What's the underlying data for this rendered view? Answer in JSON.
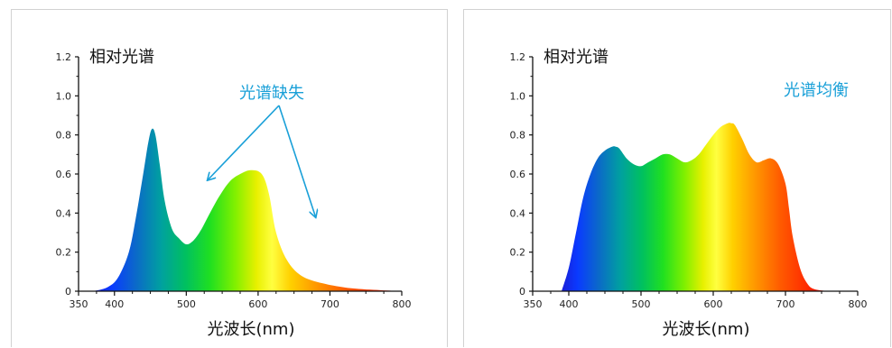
{
  "chart_data": [
    {
      "type": "area",
      "title": "相对光谱",
      "xlabel": "光波长(nm)",
      "ylabel": "",
      "xlim": [
        350,
        800
      ],
      "ylim": [
        0,
        1.2
      ],
      "x_ticks": [
        350,
        400,
        500,
        600,
        700,
        800
      ],
      "y_ticks": [
        0,
        0.2,
        0.4,
        0.6,
        0.8,
        1.0,
        1.2
      ],
      "x_tick_labels": [
        "350",
        "400",
        "500",
        "600",
        "700",
        "800"
      ],
      "y_tick_labels": [
        "0",
        "0.2",
        "0.4",
        "0.6",
        "0.8",
        "1.0",
        "1.2"
      ],
      "annotation": {
        "text": "光谱缺失",
        "color": "#1aa0d8",
        "arrow_targets": [
          [
            530,
            0.57
          ],
          [
            680,
            0.38
          ]
        ]
      },
      "series": [
        {
          "x": [
            370,
            390,
            405,
            420,
            430,
            440,
            447,
            452,
            457,
            463,
            470,
            480,
            490,
            500,
            510,
            520,
            530,
            545,
            560,
            575,
            590,
            605,
            615,
            625,
            640,
            660,
            690,
            730,
            770,
            800
          ],
          "y": [
            0.0,
            0.02,
            0.07,
            0.2,
            0.38,
            0.6,
            0.76,
            0.83,
            0.8,
            0.65,
            0.46,
            0.32,
            0.27,
            0.24,
            0.26,
            0.31,
            0.38,
            0.48,
            0.56,
            0.6,
            0.62,
            0.6,
            0.5,
            0.3,
            0.16,
            0.08,
            0.04,
            0.015,
            0.005,
            0.0
          ]
        }
      ]
    },
    {
      "type": "area",
      "title": "相对光谱",
      "xlabel": "光波长(nm)",
      "ylabel": "",
      "xlim": [
        350,
        800
      ],
      "ylim": [
        0,
        1.2
      ],
      "x_ticks": [
        350,
        400,
        500,
        600,
        700,
        800
      ],
      "y_ticks": [
        0,
        0.2,
        0.4,
        0.6,
        0.8,
        1.0,
        1.2
      ],
      "x_tick_labels": [
        "350",
        "400",
        "500",
        "600",
        "700",
        "800"
      ],
      "y_tick_labels": [
        "0",
        "0.2",
        "0.4",
        "0.6",
        "0.8",
        "1.0",
        "1.2"
      ],
      "annotation": {
        "text": "光谱均衡",
        "color": "#1aa0d8",
        "arrow_targets": []
      },
      "series": [
        {
          "x": [
            390,
            400,
            410,
            420,
            430,
            440,
            450,
            460,
            465,
            470,
            480,
            490,
            500,
            510,
            520,
            530,
            540,
            550,
            560,
            570,
            580,
            590,
            600,
            610,
            620,
            625,
            630,
            640,
            650,
            660,
            670,
            680,
            690,
            700,
            705,
            710,
            720,
            730,
            740,
            760
          ],
          "y": [
            0.0,
            0.12,
            0.3,
            0.48,
            0.6,
            0.68,
            0.72,
            0.74,
            0.74,
            0.73,
            0.68,
            0.65,
            0.64,
            0.66,
            0.68,
            0.7,
            0.7,
            0.68,
            0.66,
            0.67,
            0.7,
            0.75,
            0.8,
            0.84,
            0.86,
            0.86,
            0.85,
            0.78,
            0.7,
            0.66,
            0.67,
            0.68,
            0.65,
            0.55,
            0.42,
            0.28,
            0.12,
            0.04,
            0.01,
            0.0
          ]
        }
      ]
    }
  ]
}
